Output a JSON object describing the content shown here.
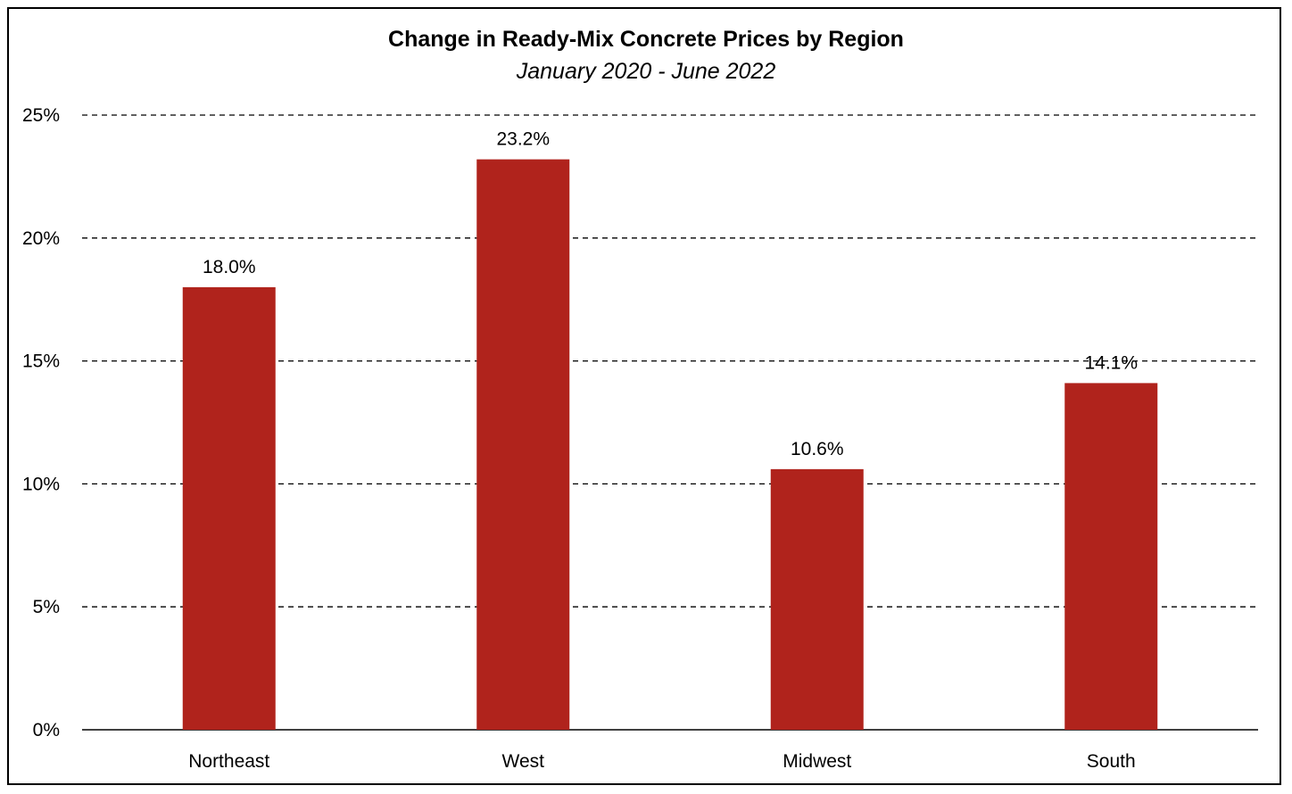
{
  "title": "Change in Ready-Mix Concrete Prices by Region",
  "subtitle": "January 2020 - June 2022",
  "colors": {
    "bar": "#b0231c",
    "grid": "#000000",
    "text": "#000000"
  },
  "chart_data": {
    "type": "bar",
    "title": "Change in Ready-Mix Concrete Prices by Region",
    "subtitle": "January 2020 - June 2022",
    "categories": [
      "Northeast",
      "West",
      "Midwest",
      "South"
    ],
    "values": [
      18.0,
      23.2,
      10.6,
      14.1
    ],
    "data_labels": [
      "18.0%",
      "23.2%",
      "10.6%",
      "14.1%"
    ],
    "xlabel": "",
    "ylabel": "",
    "ylim": [
      0,
      25
    ],
    "yticks": [
      0,
      5,
      10,
      15,
      20,
      25
    ],
    "ytick_labels": [
      "0%",
      "5%",
      "10%",
      "15%",
      "20%",
      "25%"
    ],
    "grid": "dashed horizontal",
    "legend": "none"
  }
}
